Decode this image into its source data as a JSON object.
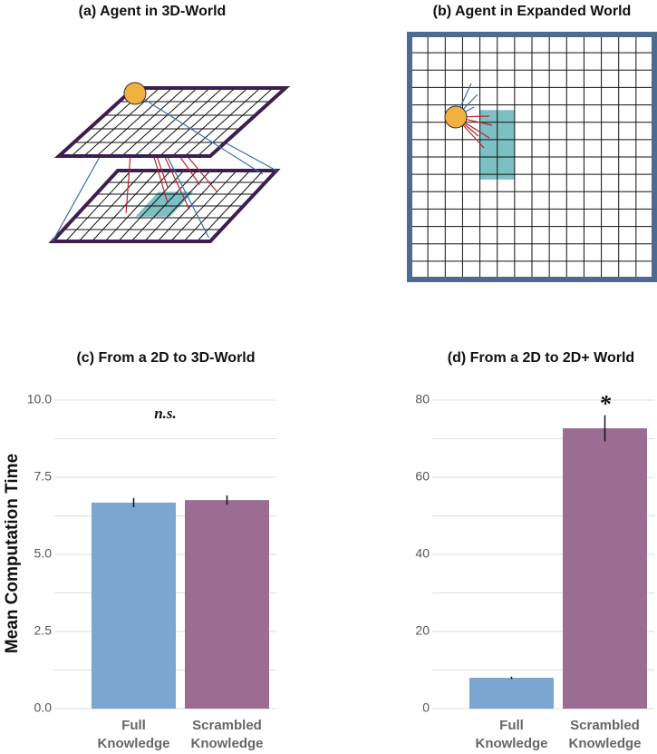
{
  "diagrams": [
    {
      "title": "(a) Agent in 3D-World"
    },
    {
      "title": "(b) Agent in Expanded World"
    }
  ],
  "chart_data": [
    {
      "type": "bar",
      "title": "(c) From a 2D to 3D-World",
      "y_label": "Mean Computation Time",
      "categories": [
        "Full Knowledge",
        "Scrambled Knowledge"
      ],
      "values": [
        6.68,
        6.76
      ],
      "errors": [
        0.15,
        0.15
      ],
      "colors": [
        "#7aa6cf",
        "#9b6d93"
      ],
      "annotation": "n.s.",
      "ylim": [
        0,
        10
      ],
      "yticks": [
        {
          "value": 0,
          "label": "0.0"
        },
        {
          "value": 2.5,
          "label": "2.5"
        },
        {
          "value": 5,
          "label": "5.0"
        },
        {
          "value": 7.5,
          "label": "7.5"
        },
        {
          "value": 10,
          "label": "10.0"
        }
      ],
      "minor_yticks": [
        1.25,
        3.75,
        6.25,
        8.75
      ],
      "grid": true
    },
    {
      "type": "bar",
      "title": "(d) From a 2D to 2D+ World",
      "categories": [
        "Full Knowledge",
        "Scrambled Knowledge"
      ],
      "values": [
        8,
        72.7
      ],
      "errors": [
        0.3,
        3.4
      ],
      "colors": [
        "#7aa6cf",
        "#9b6d93"
      ],
      "annotation": "*",
      "ylim": [
        0,
        80
      ],
      "yticks": [
        0,
        20,
        40,
        60,
        80
      ],
      "minor_yticks": [
        10,
        30,
        50,
        70
      ],
      "grid": true
    }
  ]
}
